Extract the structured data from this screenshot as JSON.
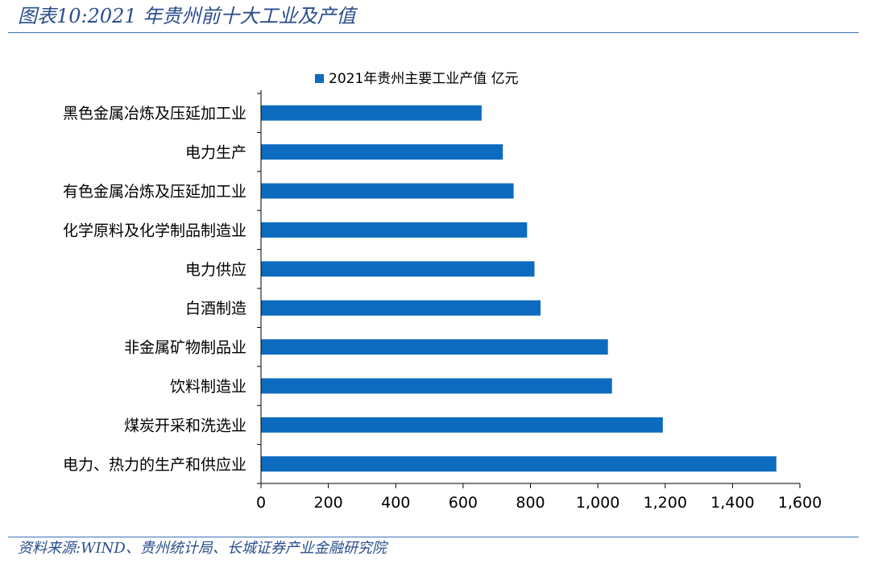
{
  "figure": {
    "title": "图表10:2021 年贵州前十大工业及产值",
    "source": "资料来源:WIND、贵州统计局、长城证券产业金融研究院"
  },
  "colors": {
    "bar": "#0c6bbf",
    "header": "#2a4d8c",
    "rule": "#3b6fb3",
    "axis": "#000000",
    "text": "#000000"
  },
  "chart_data": {
    "type": "bar",
    "orientation": "horizontal",
    "categories": [
      "黑色金属冶炼及压延加工业",
      "电力生产",
      "有色金属冶炼及压延加工业",
      "化学原料及化学制品制造业",
      "电力供应",
      "白酒制造",
      "非金属矿物制品业",
      "饮料制造业",
      "煤炭开采和洗选业",
      "电力、热力的生产和供应业"
    ],
    "series": [
      {
        "name": "2021年贵州主要工业产值 亿元",
        "values": [
          655,
          718,
          750,
          790,
          812,
          830,
          1030,
          1042,
          1193,
          1530
        ]
      }
    ],
    "xlim": [
      0,
      1600
    ],
    "xticks": [
      0,
      200,
      400,
      600,
      800,
      1000,
      1200,
      1400,
      1600
    ],
    "xtick_labels": [
      "0",
      "200",
      "400",
      "600",
      "800",
      "1,000",
      "1,200",
      "1,400",
      "1,600"
    ],
    "legend_position": "top-center",
    "grid": false
  }
}
